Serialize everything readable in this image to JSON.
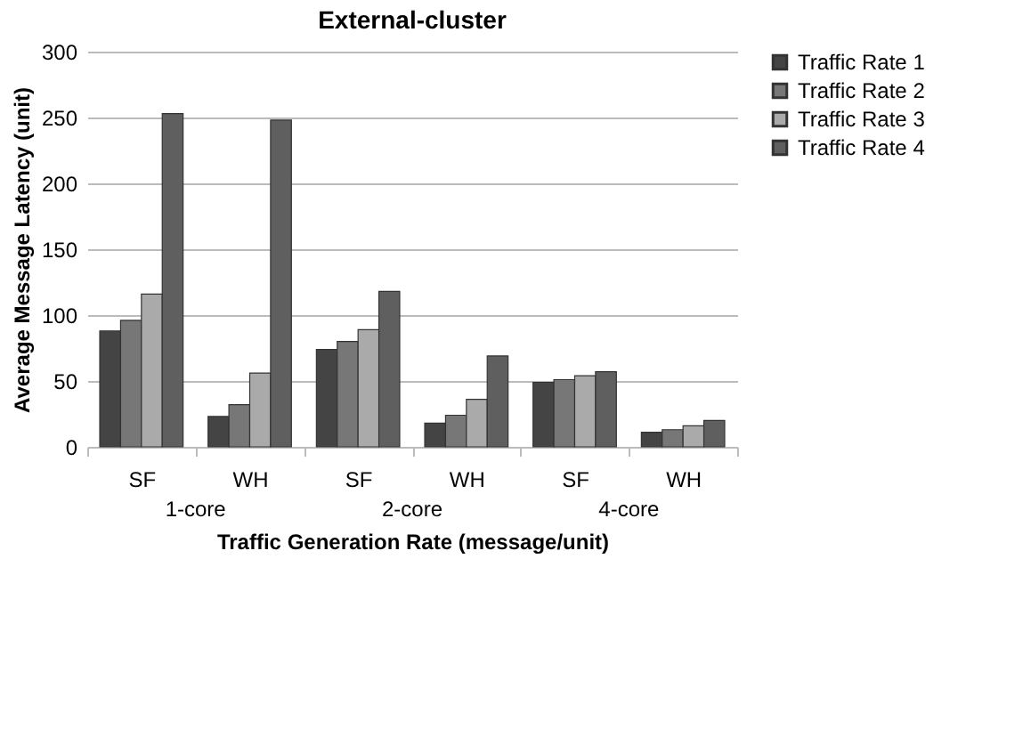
{
  "chart_data": {
    "type": "bar",
    "title": "External-cluster",
    "xlabel": "Traffic Generation Rate (message/unit)",
    "ylabel": "Average Message Latency (unit)",
    "categories": [
      "SF",
      "WH",
      "SF",
      "WH",
      "SF",
      "WH"
    ],
    "annotations": [
      "1-core",
      "2-core",
      "4-core"
    ],
    "series": [
      {
        "name": "Traffic Rate 1",
        "color": "#444444",
        "values": [
          88,
          23,
          74,
          18,
          49,
          11
        ]
      },
      {
        "name": "Traffic Rate 2",
        "color": "#777777",
        "values": [
          96,
          32,
          80,
          24,
          51,
          13
        ]
      },
      {
        "name": "Traffic Rate 3",
        "color": "#aaaaaa",
        "values": [
          116,
          56,
          89,
          36,
          54,
          16
        ]
      },
      {
        "name": "Traffic Rate 4",
        "color": "#5f5f5f",
        "values": [
          253,
          248,
          118,
          69,
          57,
          20
        ]
      }
    ],
    "ylim": [
      0,
      300
    ],
    "yticks": [
      0,
      50,
      100,
      150,
      200,
      250,
      300
    ],
    "grid": "y",
    "legend": "right"
  }
}
